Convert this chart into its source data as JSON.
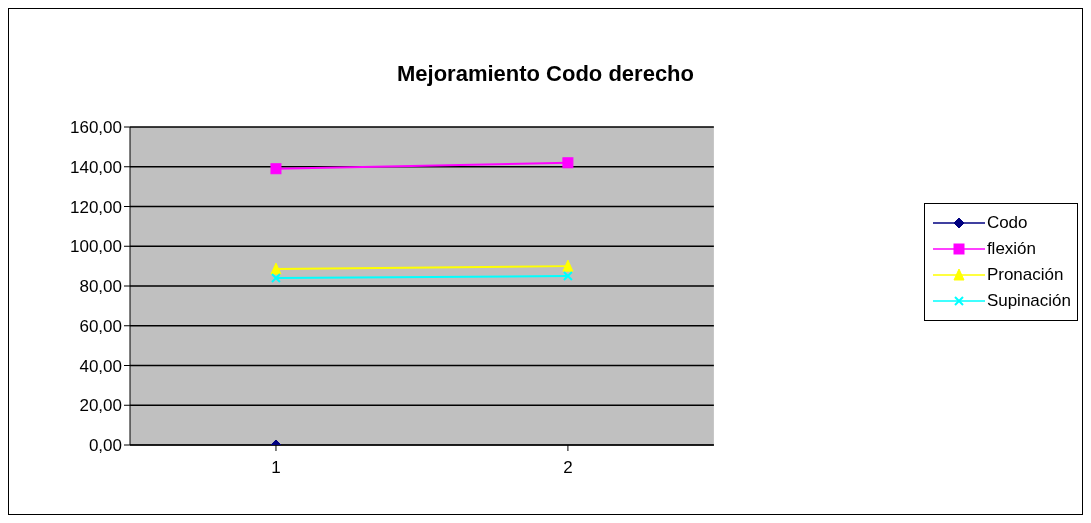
{
  "chart_data": {
    "type": "line",
    "title": "Mejoramiento Codo derecho",
    "categories": [
      "1",
      "2"
    ],
    "series": [
      {
        "name": "Codo",
        "color": "#000080",
        "marker": "diamond",
        "values": [
          0,
          null
        ]
      },
      {
        "name": "flexión",
        "color": "#ff00ff",
        "marker": "square",
        "values": [
          139,
          142
        ]
      },
      {
        "name": "Pronación",
        "color": "#ffff00",
        "marker": "triangle",
        "values": [
          88.5,
          90
        ]
      },
      {
        "name": "Supinación",
        "color": "#00ffff",
        "marker": "cross",
        "values": [
          84,
          85
        ]
      }
    ],
    "ylim": [
      0,
      160
    ],
    "yticks": [
      {
        "value": 0,
        "label": "0,00"
      },
      {
        "value": 20,
        "label": "20,00"
      },
      {
        "value": 40,
        "label": "40,00"
      },
      {
        "value": 60,
        "label": "60,00"
      },
      {
        "value": 80,
        "label": "80,00"
      },
      {
        "value": 100,
        "label": "100,00"
      },
      {
        "value": 120,
        "label": "120,00"
      },
      {
        "value": 140,
        "label": "140,00"
      },
      {
        "value": 160,
        "label": "160,00"
      }
    ],
    "grid": "y",
    "legend": "right"
  }
}
